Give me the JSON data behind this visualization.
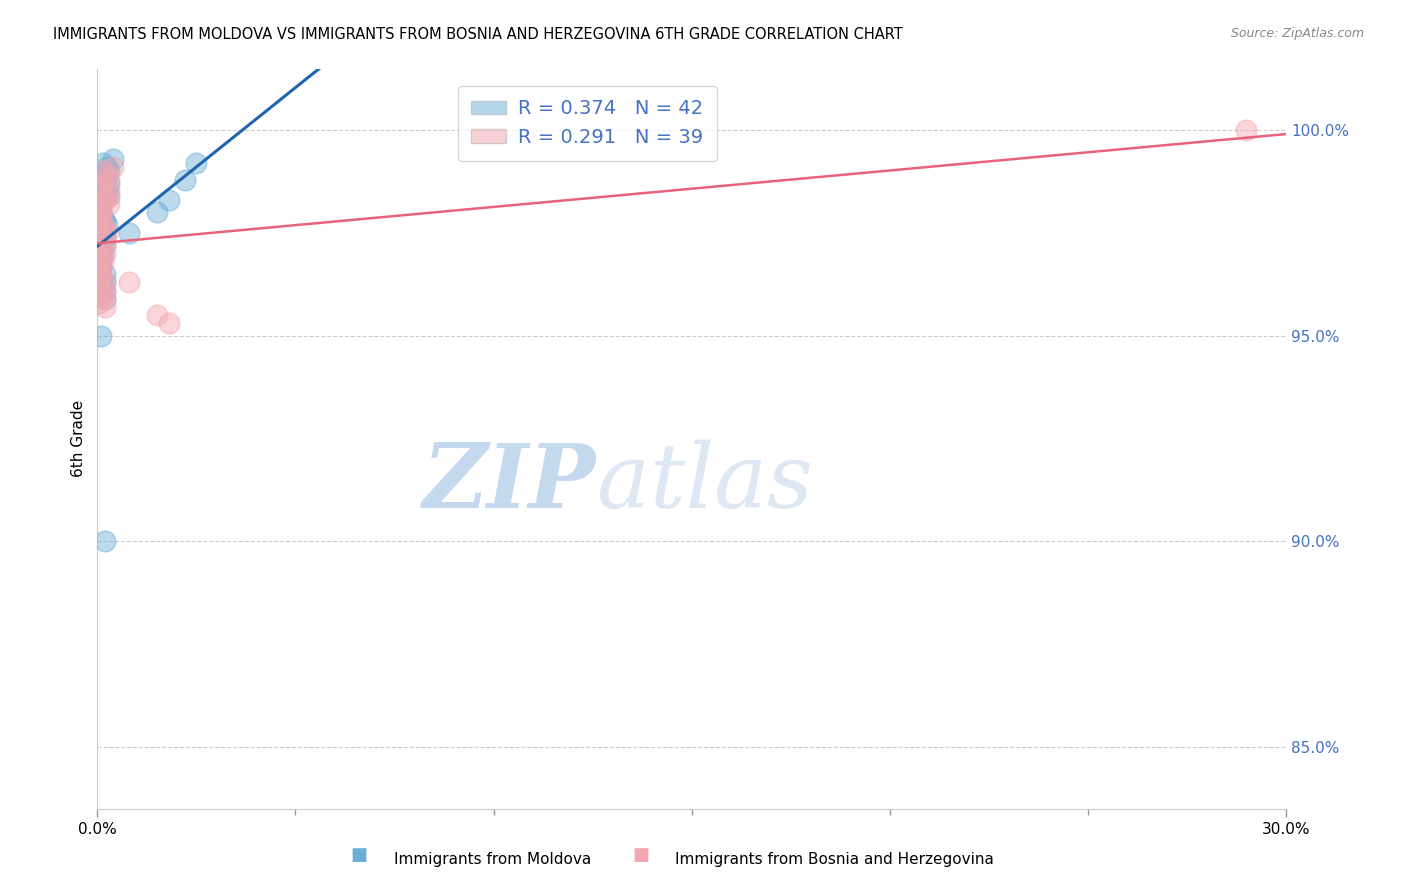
{
  "title": "IMMIGRANTS FROM MOLDOVA VS IMMIGRANTS FROM BOSNIA AND HERZEGOVINA 6TH GRADE CORRELATION CHART",
  "source": "Source: ZipAtlas.com",
  "ylabel": "6th Grade",
  "right_yticks": [
    85.0,
    90.0,
    95.0,
    100.0
  ],
  "moldova_color": "#6baed6",
  "bosnia_color": "#f4a6b0",
  "moldova_line_color": "#2166ac",
  "bosnia_line_color": "#e8637a",
  "legend_R_moldova": "R = 0.374",
  "legend_N_moldova": "N = 42",
  "legend_R_bosnia": "R = 0.291",
  "legend_N_bosnia": "N = 39",
  "legend_text_color": "#4472c4",
  "watermark_zip": "ZIP",
  "watermark_atlas": "atlas",
  "watermark_color": "#c8dff2",
  "moldova_x": [
    0.0005,
    0.001,
    0.0015,
    0.002,
    0.0005,
    0.001,
    0.0015,
    0.002,
    0.0025,
    0.001,
    0.0005,
    0.002,
    0.001,
    0.0015,
    0.0005,
    0.003,
    0.001,
    0.002,
    0.0025,
    0.001,
    0.0005,
    0.003,
    0.002,
    0.001,
    0.0005,
    0.002,
    0.0015,
    0.001,
    0.003,
    0.002,
    0.0025,
    0.0005,
    0.0015,
    0.004,
    0.002,
    0.008,
    0.015,
    0.018,
    0.022,
    0.025,
    0.001,
    0.002
  ],
  "moldova_y": [
    0.98,
    0.983,
    0.979,
    0.978,
    0.976,
    0.982,
    0.975,
    0.974,
    0.977,
    0.981,
    0.973,
    0.972,
    0.971,
    0.97,
    0.969,
    0.984,
    0.968,
    0.985,
    0.986,
    0.967,
    0.966,
    0.987,
    0.965,
    0.988,
    0.964,
    0.963,
    0.989,
    0.962,
    0.99,
    0.961,
    0.991,
    0.96,
    0.992,
    0.993,
    0.959,
    0.975,
    0.98,
    0.983,
    0.988,
    0.992,
    0.95,
    0.9
  ],
  "bosnia_x": [
    0.0005,
    0.001,
    0.0015,
    0.002,
    0.0005,
    0.001,
    0.0015,
    0.002,
    0.0025,
    0.001,
    0.0005,
    0.002,
    0.001,
    0.0015,
    0.0005,
    0.003,
    0.001,
    0.002,
    0.0025,
    0.001,
    0.0005,
    0.003,
    0.002,
    0.001,
    0.0005,
    0.002,
    0.0015,
    0.001,
    0.003,
    0.002,
    0.0025,
    0.0005,
    0.0015,
    0.004,
    0.002,
    0.008,
    0.015,
    0.018,
    0.29
  ],
  "bosnia_y": [
    0.978,
    0.981,
    0.977,
    0.976,
    0.974,
    0.98,
    0.973,
    0.972,
    0.975,
    0.979,
    0.971,
    0.97,
    0.969,
    0.968,
    0.967,
    0.982,
    0.966,
    0.983,
    0.984,
    0.965,
    0.964,
    0.985,
    0.963,
    0.986,
    0.962,
    0.961,
    0.987,
    0.96,
    0.988,
    0.959,
    0.989,
    0.958,
    0.99,
    0.991,
    0.957,
    0.963,
    0.955,
    0.953,
    1.0
  ],
  "xlim": [
    0.0,
    0.3
  ],
  "ylim": [
    0.835,
    1.015
  ],
  "xticklabels_positions": [
    0.0,
    0.3
  ],
  "xticklabels": [
    "0.0%",
    "30.0%"
  ],
  "xtick_minor_positions": [
    0.05,
    0.1,
    0.15,
    0.2,
    0.25
  ]
}
